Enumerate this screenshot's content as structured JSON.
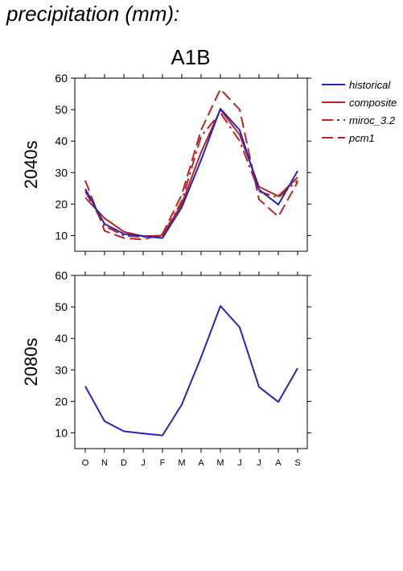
{
  "heading": "precipitation (mm):",
  "chart_data": {
    "type": "line",
    "scenario": "A1B",
    "categories": [
      "O",
      "N",
      "D",
      "J",
      "F",
      "M",
      "A",
      "M",
      "J",
      "J",
      "A",
      "S"
    ],
    "ylim": [
      5,
      60
    ],
    "yticks": [
      10,
      20,
      30,
      40,
      50,
      60
    ],
    "grid": false,
    "legend": {
      "position": "right-of-top-panel",
      "entries": [
        {
          "name": "historical",
          "color": "#2424b8",
          "dash": "solid"
        },
        {
          "name": "composite",
          "color": "#b52525",
          "dash": "solid"
        },
        {
          "name": "miroc_3.2",
          "color": "#b52525",
          "dash": "dashdot"
        },
        {
          "name": "pcm1",
          "color": "#b52525",
          "dash": "dashed"
        }
      ]
    },
    "panels": [
      {
        "ylabel": "2040s",
        "series": [
          {
            "name": "historical",
            "color": "#2424b8",
            "dash": "solid",
            "values": [
              24.8,
              13.7,
              10.5,
              9.8,
              9.2,
              19.0,
              34.0,
              50.3,
              43.5,
              24.6,
              19.8,
              30.5
            ]
          },
          {
            "name": "composite",
            "color": "#b52525",
            "dash": "solid",
            "values": [
              22.0,
              15.5,
              11.2,
              9.8,
              10.0,
              20.0,
              36.5,
              50.0,
              42.0,
              25.5,
              22.5,
              28.5
            ]
          },
          {
            "name": "miroc_3.2",
            "color": "#b52525",
            "dash": "dashdot",
            "values": [
              24.0,
              13.0,
              10.0,
              9.5,
              9.8,
              21.0,
              41.5,
              49.0,
              40.0,
              24.0,
              22.0,
              27.5
            ]
          },
          {
            "name": "pcm1",
            "color": "#b52525",
            "dash": "dashed",
            "values": [
              27.5,
              11.5,
              9.2,
              8.7,
              10.5,
              23.0,
              43.5,
              56.5,
              50.0,
              21.5,
              16.0,
              27.0
            ]
          }
        ]
      },
      {
        "ylabel": "2080s",
        "series": [
          {
            "name": "historical",
            "color": "#2424b8",
            "dash": "solid",
            "values": [
              24.8,
              13.7,
              10.5,
              9.8,
              9.2,
              19.0,
              34.0,
              50.3,
              43.5,
              24.6,
              19.8,
              30.5
            ]
          }
        ]
      }
    ]
  }
}
